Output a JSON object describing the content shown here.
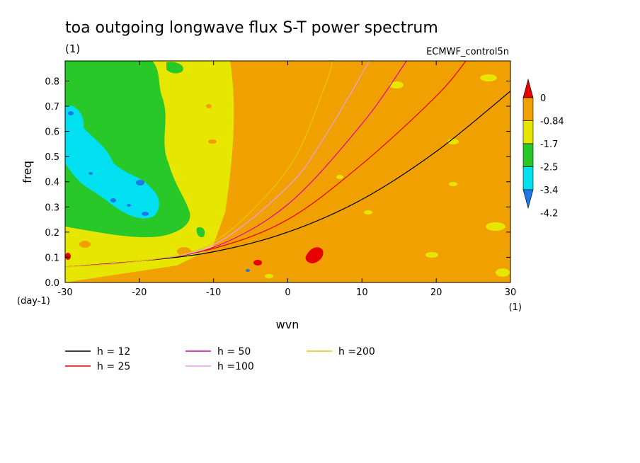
{
  "chart_data": {
    "type": "heatmap",
    "title": "toa outgoing longwave flux S-T power spectrum",
    "title_units": "(1)",
    "subtitle": "ECMWF_control5n",
    "xlabel": "wvn",
    "xlabel_units": "(1)",
    "ylabel": "freq",
    "ylabel_units": "(day-1)",
    "xlim": [
      -30,
      30
    ],
    "ylim": [
      0,
      0.88
    ],
    "xticks": [
      -30,
      -20,
      -10,
      0,
      10,
      20,
      30
    ],
    "xtick_labels": [
      "-30",
      "-20",
      "-10",
      "0",
      "10",
      "20",
      "30"
    ],
    "yticks": [
      0.0,
      0.1,
      0.2,
      0.3,
      0.4,
      0.5,
      0.6,
      0.7,
      0.8
    ],
    "ytick_labels": [
      "0.0",
      "0.1",
      "0.2",
      "0.3",
      "0.4",
      "0.5",
      "0.6",
      "0.7",
      "0.8"
    ],
    "colorbar": {
      "levels": [
        -4.2,
        -3.4,
        -2.5,
        -1.7,
        -0.84,
        0
      ],
      "labels": [
        "0",
        "-0.84",
        "-1.7",
        "-2.5",
        "-3.4",
        "-4.2"
      ],
      "colors": [
        "#1e78e6",
        "#00e0f0",
        "#28c828",
        "#e6e600",
        "#f0a000",
        "#e60000"
      ],
      "extend": "both"
    },
    "series": [
      {
        "name": "h = 12",
        "h": 12,
        "color": "#000000",
        "x": [
          -30,
          -20,
          -10,
          0,
          10,
          20,
          30
        ],
        "values": [
          0.062,
          0.085,
          0.122,
          0.2,
          0.33,
          0.52,
          0.76
        ]
      },
      {
        "name": "h = 25",
        "h": 25,
        "color": "#e60000",
        "x": [
          -30,
          -20,
          -10,
          0,
          10,
          20,
          24
        ],
        "values": [
          0.062,
          0.085,
          0.135,
          0.25,
          0.47,
          0.74,
          0.88
        ]
      },
      {
        "name": "h = 50",
        "h": 50,
        "color": "#e600a0",
        "x": [
          -30,
          -20,
          -10,
          0,
          10,
          16
        ],
        "values": [
          0.062,
          0.085,
          0.14,
          0.31,
          0.63,
          0.88
        ]
      },
      {
        "name": "h =100",
        "h": 100,
        "color": "#e6a0e6",
        "x": [
          -30,
          -20,
          -10,
          0,
          5,
          11
        ],
        "values": [
          0.062,
          0.085,
          0.15,
          0.38,
          0.58,
          0.88
        ]
      },
      {
        "name": "h =200",
        "h": 200,
        "color": "#e6c800",
        "x": [
          -30,
          -20,
          -10,
          0,
          5,
          6
        ],
        "values": [
          0.062,
          0.085,
          0.16,
          0.45,
          0.78,
          0.88
        ]
      }
    ],
    "legend": {
      "placement": "below-plot"
    }
  }
}
